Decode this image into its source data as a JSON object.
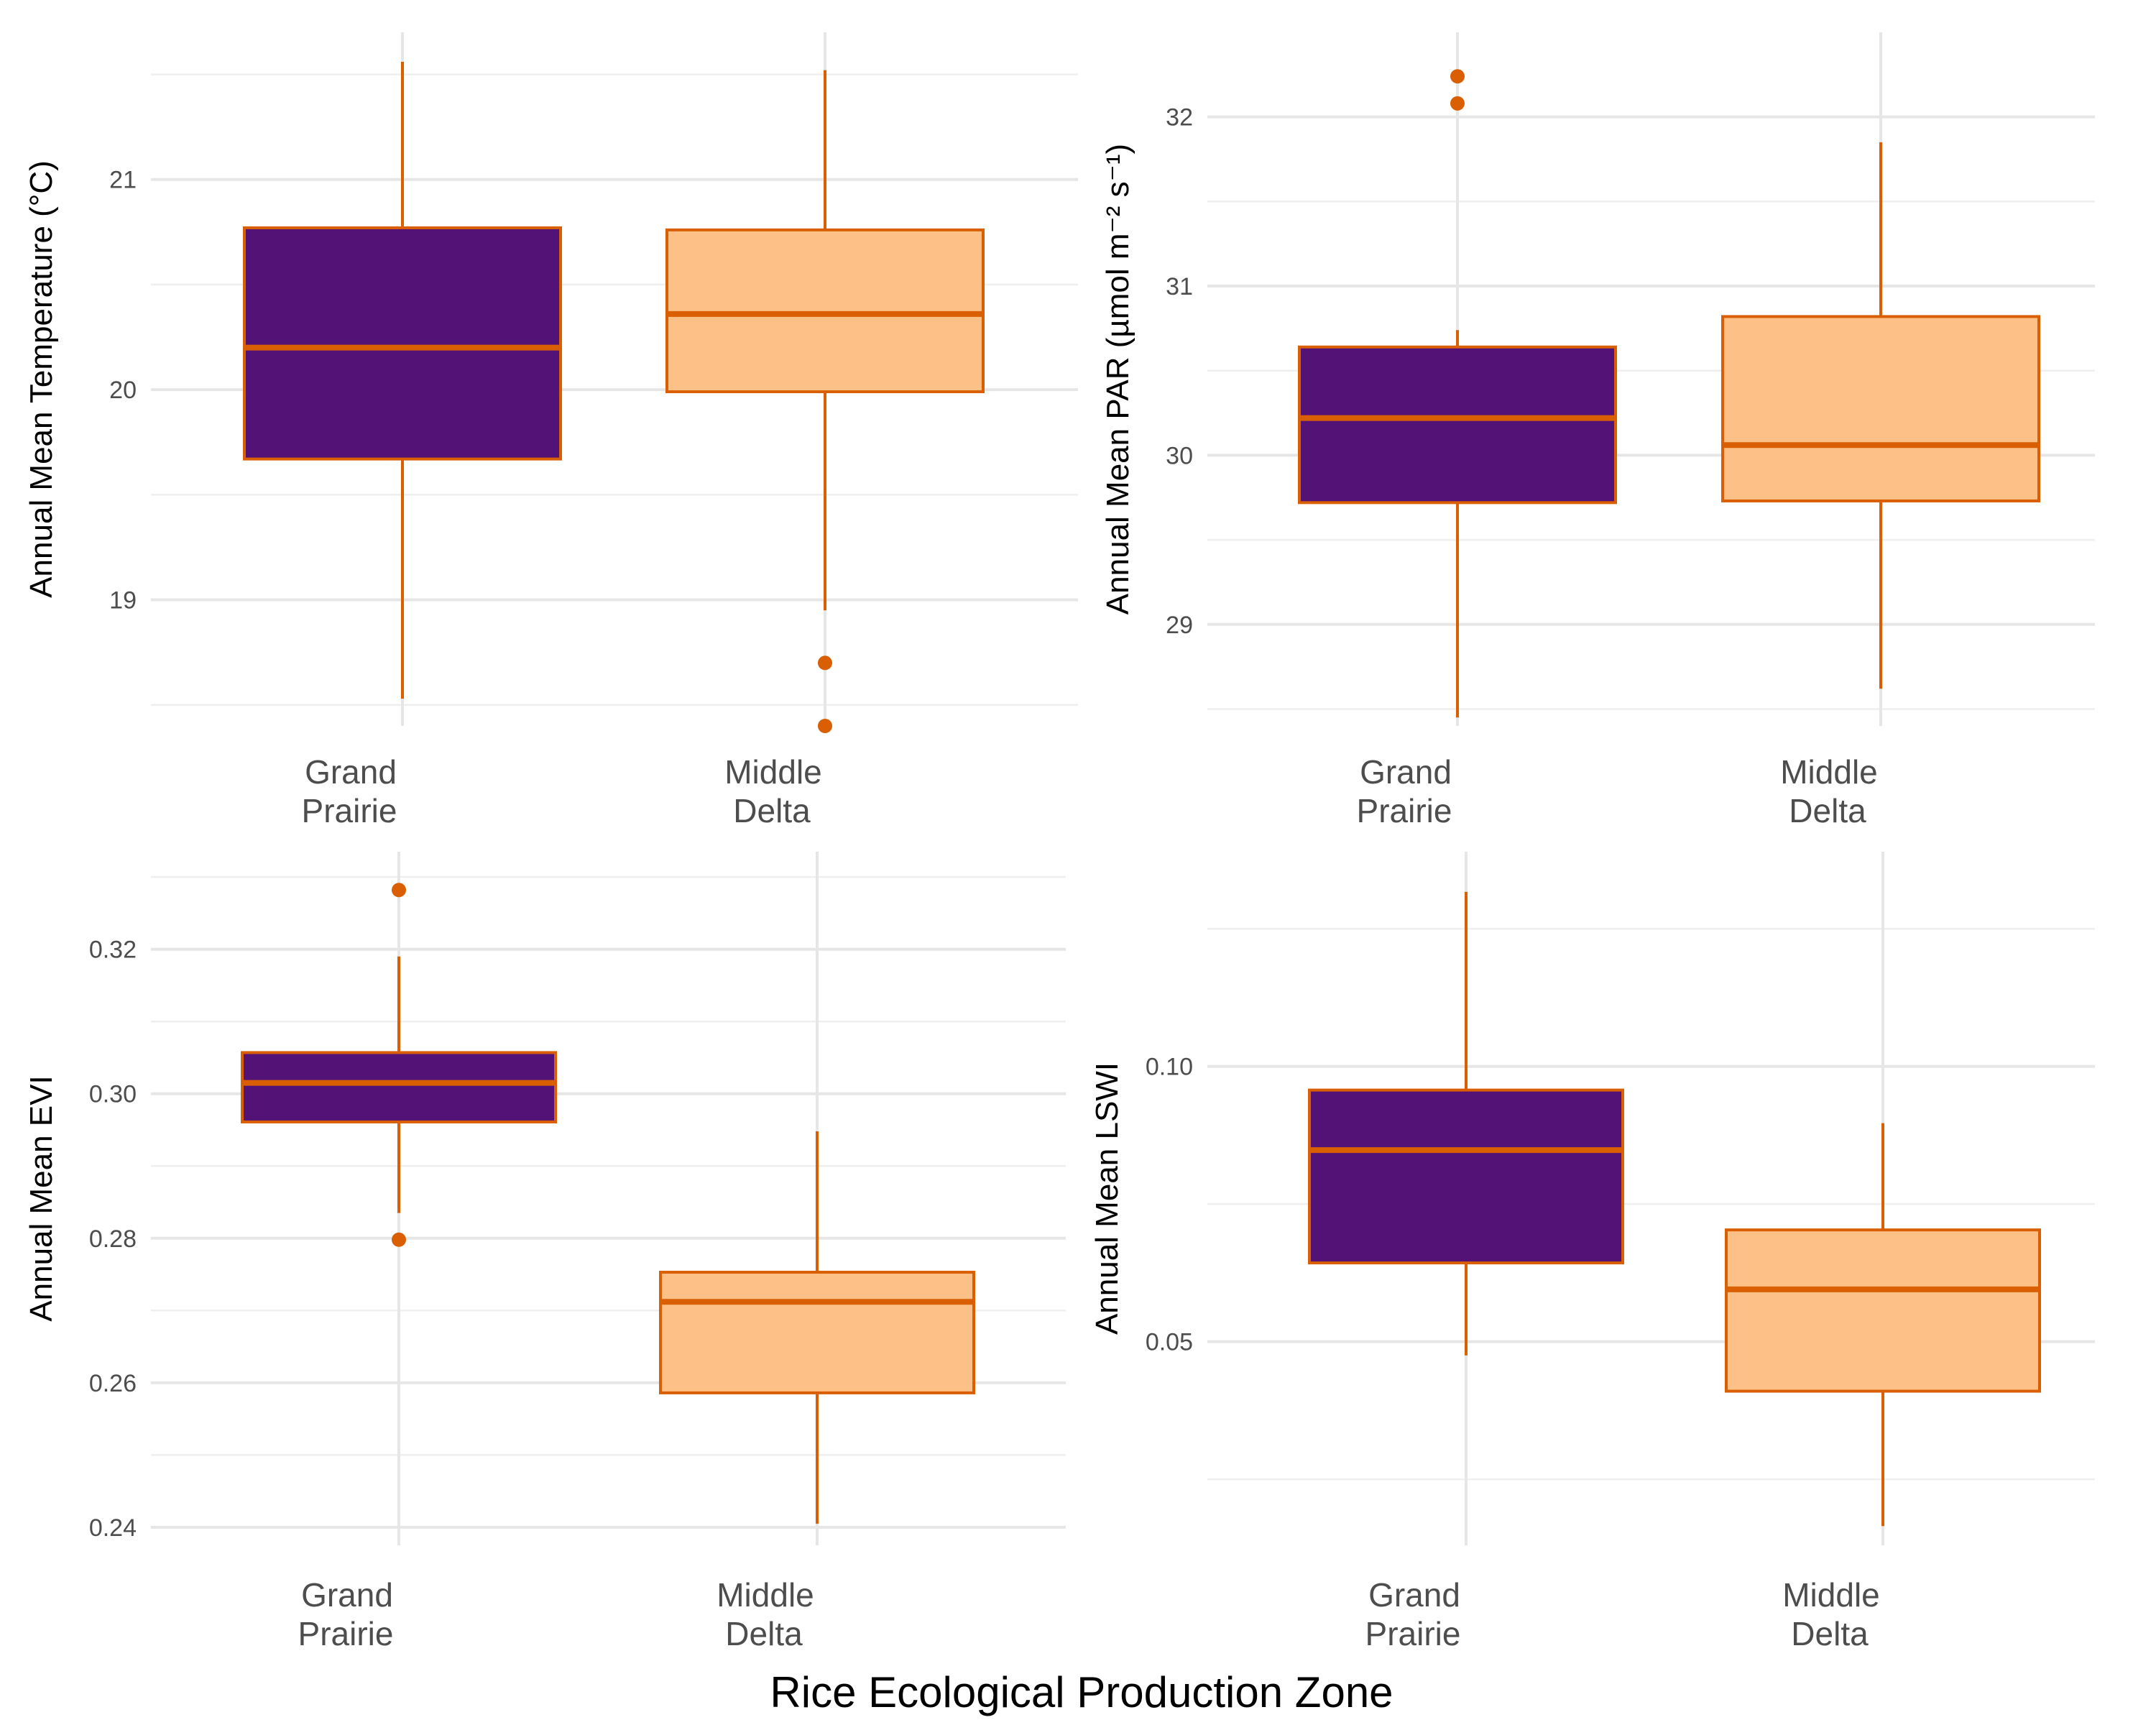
{
  "colors": {
    "grand_prairie_fill": "#521276",
    "middle_delta_fill": "#FDC086",
    "outline": "#D95F02",
    "grid": "#E6E6E6"
  },
  "x_axis_title": "Rice Ecological Production Zone",
  "chart_data": [
    {
      "type": "box",
      "ylabel": "Annual Mean Temperature (°C)",
      "ylim": [
        18.4,
        21.7
      ],
      "y_ticks": [
        19,
        20,
        21
      ],
      "y_tick_labels": [
        "19",
        "20",
        "21"
      ],
      "categories": [
        "Grand\nPrairie",
        "Middle\nDelta"
      ],
      "boxes": [
        {
          "group": "Grand Prairie",
          "min": 18.53,
          "q1": 19.67,
          "median": 20.2,
          "q3": 20.77,
          "max": 21.56,
          "outliers": []
        },
        {
          "group": "Middle Delta",
          "min": 18.95,
          "q1": 19.99,
          "median": 20.36,
          "q3": 20.76,
          "max": 21.52,
          "outliers": [
            18.7,
            18.4
          ]
        }
      ]
    },
    {
      "type": "box",
      "ylabel": "Annual Mean PAR (µmol m⁻² s⁻¹)",
      "ylim": [
        28.4,
        32.5
      ],
      "y_ticks": [
        29,
        30,
        31,
        32
      ],
      "y_tick_labels": [
        "29",
        "30",
        "31",
        "32"
      ],
      "categories": [
        "Grand\nPrairie",
        "Middle\nDelta"
      ],
      "boxes": [
        {
          "group": "Grand Prairie",
          "min": 28.45,
          "q1": 29.72,
          "median": 30.22,
          "q3": 30.64,
          "max": 30.74,
          "outliers": [
            32.24,
            32.08
          ]
        },
        {
          "group": "Middle Delta",
          "min": 28.62,
          "q1": 29.73,
          "median": 30.06,
          "q3": 30.82,
          "max": 31.85,
          "outliers": []
        }
      ]
    },
    {
      "type": "box",
      "ylabel": "Annual Mean EVI",
      "ylim": [
        0.2375,
        0.3335
      ],
      "y_ticks": [
        0.24,
        0.26,
        0.28,
        0.3,
        0.32
      ],
      "y_tick_labels": [
        "0.24",
        "0.26",
        "0.28",
        "0.30",
        "0.32"
      ],
      "categories": [
        "Grand\nPrairie",
        "Middle\nDelta"
      ],
      "boxes": [
        {
          "group": "Grand Prairie",
          "min": 0.2835,
          "q1": 0.2961,
          "median": 0.3015,
          "q3": 0.3057,
          "max": 0.319,
          "outliers": [
            0.3282,
            0.2798
          ]
        },
        {
          "group": "Middle Delta",
          "min": 0.2405,
          "q1": 0.2586,
          "median": 0.2712,
          "q3": 0.2753,
          "max": 0.2948,
          "outliers": []
        }
      ]
    },
    {
      "type": "box",
      "ylabel": "Annual Mean LSWI",
      "ylim": [
        0.013,
        0.139
      ],
      "y_ticks": [
        0.05,
        0.1
      ],
      "y_tick_labels": [
        "0.05",
        "0.10"
      ],
      "categories": [
        "Grand\nPrairie",
        "Middle\nDelta"
      ],
      "boxes": [
        {
          "group": "Grand Prairie",
          "min": 0.0475,
          "q1": 0.0643,
          "median": 0.0848,
          "q3": 0.0957,
          "max": 0.1317,
          "outliers": []
        },
        {
          "group": "Middle Delta",
          "min": 0.0165,
          "q1": 0.041,
          "median": 0.0595,
          "q3": 0.0703,
          "max": 0.0897,
          "outliers": []
        }
      ]
    }
  ]
}
